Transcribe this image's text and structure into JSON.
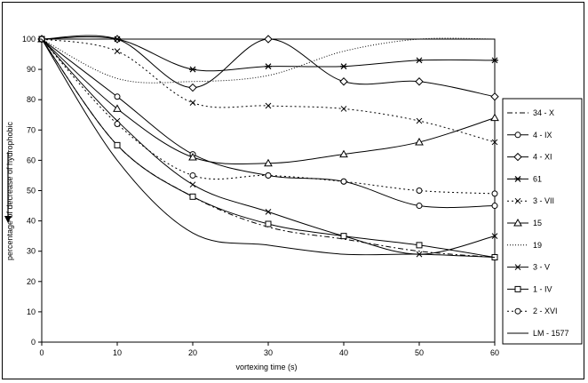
{
  "chart_data": {
    "type": "line",
    "title": "",
    "xlabel": "vortexing time (s)",
    "ylabel": "percentage of decrease of hydrophobic",
    "xlim": [
      0,
      60
    ],
    "ylim": [
      0,
      100
    ],
    "x_ticks": [
      0,
      10,
      20,
      30,
      40,
      50,
      60
    ],
    "y_ticks": [
      0,
      10,
      20,
      30,
      40,
      50,
      60,
      70,
      80,
      90,
      100
    ],
    "grid": false,
    "legend_position": "right",
    "x": [
      0,
      10,
      20,
      30,
      40,
      50,
      60
    ],
    "series": [
      {
        "name": "34 - X",
        "values": [
          100,
          65,
          48,
          38,
          34,
          30,
          28
        ],
        "dash": "6,3,2,3",
        "marker": "none"
      },
      {
        "name": "4 - IX",
        "values": [
          100,
          81,
          62,
          55,
          53,
          45,
          45
        ],
        "dash": "",
        "marker": "circle"
      },
      {
        "name": "4 - XI",
        "values": [
          100,
          100,
          84,
          100,
          86,
          86,
          81
        ],
        "dash": "",
        "marker": "diamond"
      },
      {
        "name": "61",
        "values": [
          100,
          100,
          90,
          91,
          91,
          93,
          93
        ],
        "dash": "",
        "marker": "asterisk"
      },
      {
        "name": "3 - VII",
        "values": [
          100,
          96,
          79,
          78,
          77,
          73,
          66
        ],
        "dash": "2,3",
        "marker": "x"
      },
      {
        "name": "15",
        "values": [
          100,
          77,
          61,
          59,
          62,
          66,
          74
        ],
        "dash": "",
        "marker": "triangle"
      },
      {
        "name": "19",
        "values": [
          100,
          87,
          86,
          88,
          96,
          100,
          100
        ],
        "dash": "1,2",
        "marker": "none"
      },
      {
        "name": "3 - V",
        "values": [
          100,
          73,
          52,
          43,
          35,
          29,
          35
        ],
        "dash": "",
        "marker": "x"
      },
      {
        "name": "1 - IV",
        "values": [
          100,
          65,
          48,
          39,
          35,
          32,
          28
        ],
        "dash": "",
        "marker": "square"
      },
      {
        "name": "2 - XVI",
        "values": [
          100,
          72,
          55,
          55,
          53,
          50,
          49
        ],
        "dash": "2,3",
        "marker": "circle"
      },
      {
        "name": "LM - 1577",
        "values": [
          100,
          60,
          36,
          32,
          29,
          29,
          28
        ],
        "dash": "",
        "marker": "none"
      }
    ]
  }
}
